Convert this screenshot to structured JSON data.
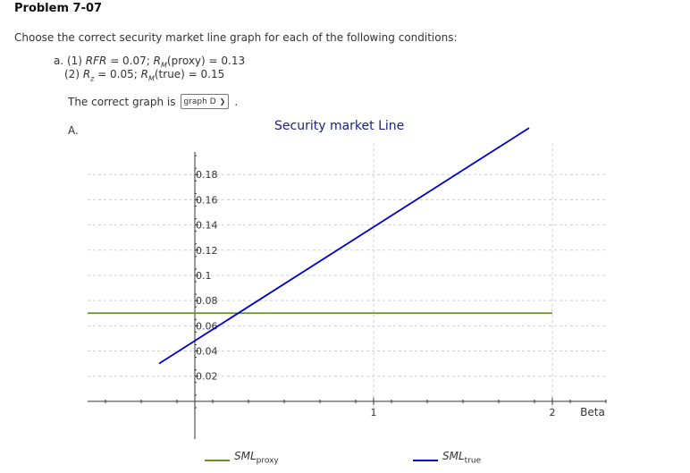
{
  "problem": {
    "title": "Problem 7-07",
    "instructions": "Choose the correct security market line graph for each of the following conditions:",
    "conditions": {
      "c1_prefix": "a. (1) ",
      "c1_rfr_label": "RFR",
      "c1_rfr_value": " = 0.07; ",
      "c1_rm_label": "R",
      "c1_rm_sub": "M",
      "c1_rm_rest": "(proxy) = 0.13",
      "c2_prefix": "(2) ",
      "c2_rz_label": "R",
      "c2_rz_sub": "z",
      "c2_rz_value": " = 0.05; ",
      "c2_rm_label": "R",
      "c2_rm_sub": "M",
      "c2_rm_rest": "(true) = 0.15"
    },
    "answer_label": "The correct graph is",
    "answer_selected": "graph D",
    "answer_period": ".",
    "option_label": "A."
  },
  "chart_data": {
    "type": "line",
    "title": "Security market Line",
    "xlabel": "Beta",
    "ylabel": "",
    "xlim": [
      -0.6,
      2.3
    ],
    "ylim": [
      -0.01,
      0.205
    ],
    "x_ticks": [
      1,
      2
    ],
    "x_tick_labels": [
      "1",
      "2"
    ],
    "y_ticks": [
      0.02,
      0.04,
      0.06,
      0.08,
      0.1,
      0.12,
      0.14,
      0.16,
      0.18
    ],
    "y_tick_labels": [
      "0.02",
      "0.04",
      "0.06",
      "0.08",
      "0.1",
      "0.12",
      "0.14",
      "0.16",
      "0.18"
    ],
    "grid": true,
    "legend_position": "bottom",
    "series": [
      {
        "name": "SML",
        "name_sub": "proxy",
        "color": "#6b8e23",
        "x": [
          -0.6,
          2.0
        ],
        "y": [
          0.07,
          0.07
        ]
      },
      {
        "name": "SML",
        "name_sub": "true",
        "color": "#0000cd",
        "x": [
          -0.2,
          1.87
        ],
        "y": [
          0.03,
          0.217
        ]
      }
    ]
  }
}
